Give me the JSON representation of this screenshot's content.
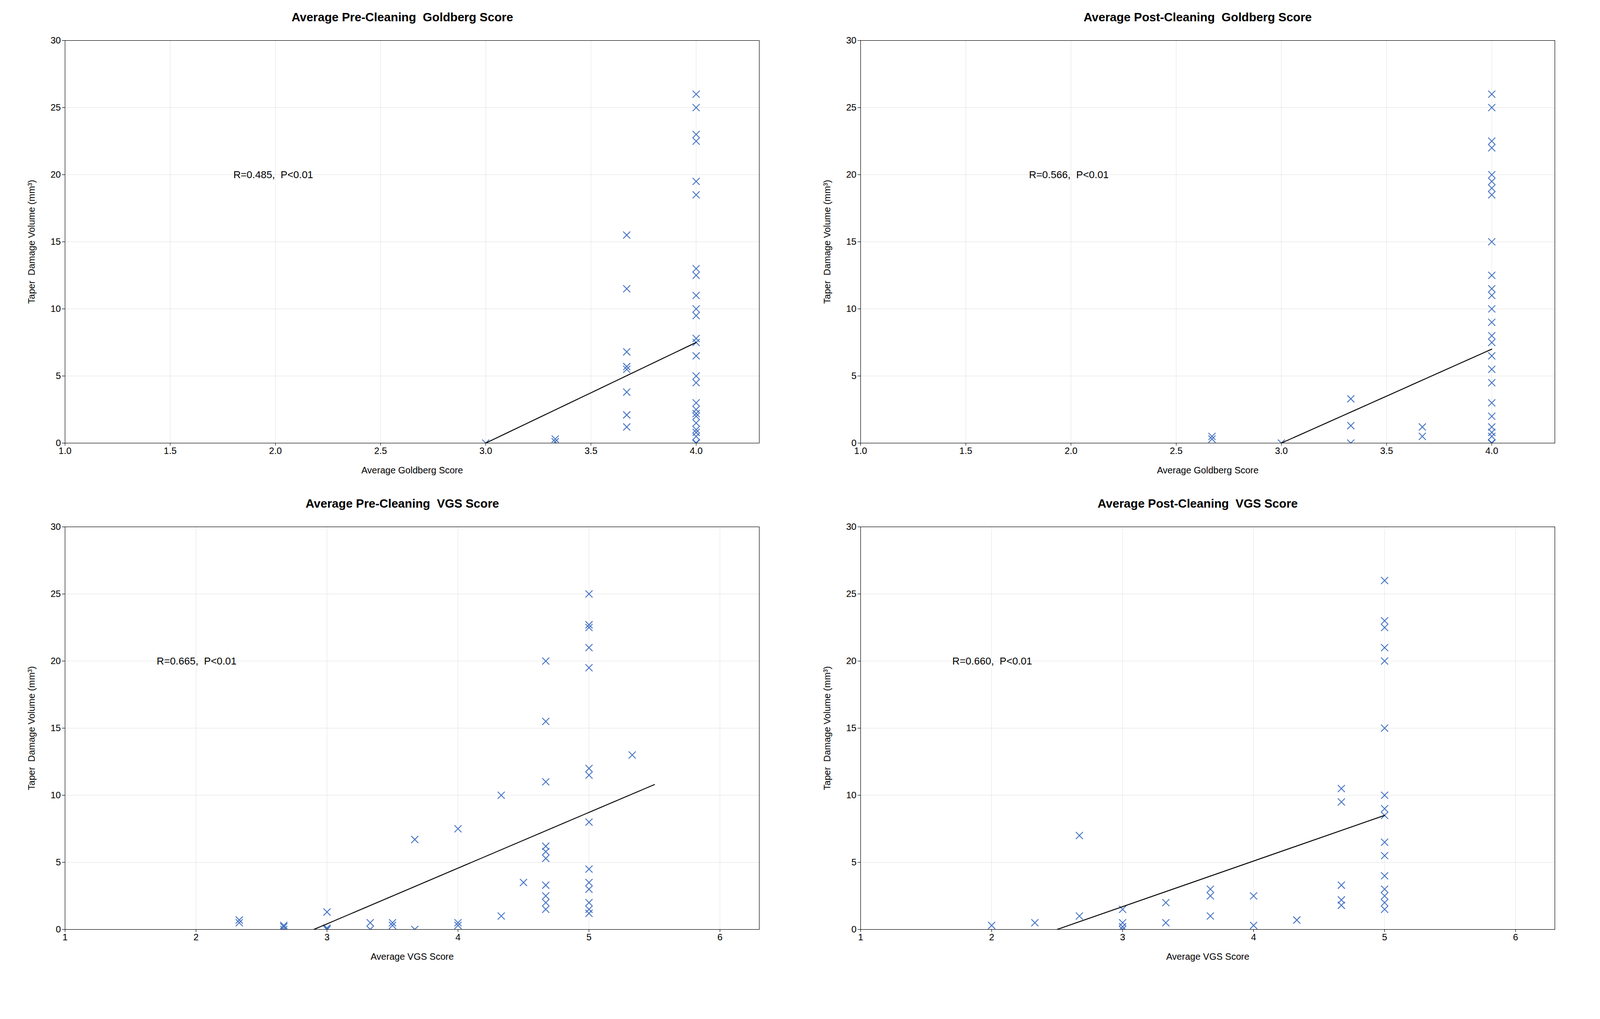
{
  "chart_data": [
    {
      "type": "scatter",
      "title": "Average Pre-Cleaning  Goldberg Score",
      "xlabel": "Average Goldberg Score",
      "ylabel": "Taper  Damage Volume (mm³)",
      "annotations": [
        {
          "text": "R=0.485,  P<0.01",
          "x": 1.8,
          "y": 20.0
        }
      ],
      "xlim": [
        1,
        4.3
      ],
      "ylim": [
        0,
        30
      ],
      "xticks": [
        {
          "value": 1,
          "label": "1.0"
        },
        {
          "value": 1.5,
          "label": "1.5"
        },
        {
          "value": 2,
          "label": "2.0"
        },
        {
          "value": 2.5,
          "label": "2.5"
        },
        {
          "value": 3,
          "label": "3.0"
        },
        {
          "value": 3.5,
          "label": "3.5"
        },
        {
          "value": 4,
          "label": "4.0"
        }
      ],
      "yticks": [
        0,
        5,
        10,
        15,
        20,
        25,
        30
      ],
      "grid": true,
      "series": [
        {
          "type": "scatter",
          "marker": "x",
          "color": "#4472C4",
          "x": [
            3.0,
            3.33,
            3.33,
            3.67,
            3.67,
            3.67,
            3.67,
            3.67,
            3.67,
            3.67,
            3.67,
            4.0,
            4.0,
            4.0,
            4.0,
            4.0,
            4.0,
            4.0,
            4.0,
            4.0,
            4.0,
            4.0,
            4.0,
            4.0,
            4.0,
            4.0,
            4.0,
            4.0,
            4.0,
            4.0,
            4.0,
            4.0,
            4.0,
            4.0,
            4.0,
            4.0,
            4.0,
            4.0,
            4.0,
            4.0,
            4.0,
            4.0,
            4.0,
            4.0,
            4.0
          ],
          "values": [
            0.0,
            0.1,
            0.3,
            3.8,
            5.5,
            5.7,
            6.8,
            11.5,
            15.5,
            1.2,
            2.1,
            0.0,
            0.0,
            0.0,
            0.0,
            0.0,
            0.0,
            0.0,
            0.0,
            0.0,
            0.0,
            0.5,
            0.8,
            1.0,
            1.5,
            2.0,
            2.2,
            2.5,
            3.0,
            4.5,
            5.0,
            6.5,
            7.5,
            7.8,
            9.5,
            10.0,
            11.0,
            12.5,
            13.0,
            18.5,
            19.5,
            22.5,
            23.0,
            25.0,
            26.0
          ]
        },
        {
          "type": "line",
          "line_style": "solid",
          "color": "black",
          "x": [
            3.0,
            4.0
          ],
          "values": [
            0.0,
            7.5
          ]
        }
      ]
    },
    {
      "type": "scatter",
      "title": "Average Post-Cleaning  Goldberg Score",
      "xlabel": "Average Goldberg Score",
      "ylabel": "Taper  Damage Volume (mm³)",
      "annotations": [
        {
          "text": "R=0.566,  P<0.01",
          "x": 1.8,
          "y": 20.0
        }
      ],
      "xlim": [
        1,
        4.3
      ],
      "ylim": [
        0,
        30
      ],
      "xticks": [
        {
          "value": 1,
          "label": "1.0"
        },
        {
          "value": 1.5,
          "label": "1.5"
        },
        {
          "value": 2,
          "label": "2.0"
        },
        {
          "value": 2.5,
          "label": "2.5"
        },
        {
          "value": 3,
          "label": "3.0"
        },
        {
          "value": 3.5,
          "label": "3.5"
        },
        {
          "value": 4,
          "label": "4.0"
        }
      ],
      "yticks": [
        0,
        5,
        10,
        15,
        20,
        25,
        30
      ],
      "grid": true,
      "series": [
        {
          "type": "scatter",
          "marker": "x",
          "color": "#4472C4",
          "x": [
            2.67,
            2.67,
            3.0,
            3.33,
            3.33,
            3.33,
            3.67,
            3.67,
            4.0,
            4.0,
            4.0,
            4.0,
            4.0,
            4.0,
            4.0,
            4.0,
            4.0,
            4.0,
            4.0,
            4.0,
            4.0,
            4.0,
            4.0,
            4.0,
            4.0,
            4.0,
            4.0,
            4.0,
            4.0,
            4.0,
            4.0,
            4.0,
            4.0,
            4.0,
            4.0,
            4.0,
            4.0,
            4.0,
            4.0,
            4.0,
            4.0,
            4.0
          ],
          "values": [
            0.3,
            0.5,
            0.0,
            0.0,
            1.3,
            3.3,
            0.5,
            1.2,
            0.0,
            0.0,
            0.0,
            0.0,
            0.0,
            0.0,
            0.0,
            0.0,
            0.0,
            0.0,
            0.5,
            0.8,
            1.2,
            2.0,
            3.0,
            4.5,
            5.5,
            6.5,
            7.5,
            8.0,
            9.0,
            10.0,
            11.0,
            11.5,
            12.5,
            15.0,
            18.5,
            19.0,
            19.5,
            20.0,
            22.0,
            22.5,
            25.0,
            26.0
          ]
        },
        {
          "type": "line",
          "line_style": "solid",
          "color": "black",
          "x": [
            3.0,
            4.0
          ],
          "values": [
            0.0,
            7.0
          ]
        }
      ]
    },
    {
      "type": "scatter",
      "title": "Average Pre-Cleaning  VGS Score",
      "xlabel": "Average VGS Score",
      "ylabel": "Taper  Damage Volume (mm³)",
      "annotations": [
        {
          "text": "R=0.665,  P<0.01",
          "x": 1.7,
          "y": 20.0
        }
      ],
      "xlim": [
        1,
        6.3
      ],
      "ylim": [
        0,
        30
      ],
      "xticks": [
        1,
        2,
        3,
        4,
        5,
        6
      ],
      "yticks": [
        0,
        5,
        10,
        15,
        20,
        25,
        30
      ],
      "grid": true,
      "series": [
        {
          "type": "scatter",
          "marker": "x",
          "color": "#4472C4",
          "x": [
            2.33,
            2.33,
            2.67,
            2.67,
            2.67,
            3.0,
            3.0,
            3.0,
            3.0,
            3.33,
            3.33,
            3.5,
            3.5,
            3.67,
            3.67,
            4.0,
            4.0,
            4.0,
            4.33,
            4.33,
            4.5,
            4.67,
            4.67,
            4.67,
            4.67,
            4.67,
            4.67,
            4.67,
            4.67,
            4.67,
            4.67,
            5.0,
            5.0,
            5.0,
            5.0,
            5.0,
            5.0,
            5.0,
            5.0,
            5.0,
            5.0,
            5.0,
            5.0,
            5.0,
            5.0,
            5.33
          ],
          "values": [
            0.5,
            0.7,
            0.0,
            0.2,
            0.3,
            0.0,
            0.0,
            0.1,
            1.3,
            0.0,
            0.5,
            0.3,
            0.5,
            0.0,
            6.7,
            0.3,
            0.5,
            7.5,
            1.0,
            10.0,
            3.5,
            1.5,
            2.0,
            2.5,
            3.3,
            5.3,
            5.8,
            6.2,
            11.0,
            15.5,
            20.0,
            1.2,
            1.5,
            2.0,
            3.0,
            3.5,
            4.5,
            8.0,
            11.5,
            12.0,
            19.5,
            21.0,
            22.5,
            22.7,
            25.0,
            13.0
          ]
        },
        {
          "type": "line",
          "line_style": "solid",
          "color": "black",
          "x": [
            2.9,
            5.5
          ],
          "values": [
            0.0,
            10.8
          ]
        }
      ]
    },
    {
      "type": "scatter",
      "title": "Average Post-Cleaning  VGS Score",
      "xlabel": "Average VGS Score",
      "ylabel": "Taper  Damage Volume (mm³)",
      "annotations": [
        {
          "text": "R=0.660,  P<0.01",
          "x": 1.7,
          "y": 20.0
        }
      ],
      "xlim": [
        1,
        6.3
      ],
      "ylim": [
        0,
        30
      ],
      "xticks": [
        1,
        2,
        3,
        4,
        5,
        6
      ],
      "yticks": [
        0,
        5,
        10,
        15,
        20,
        25,
        30
      ],
      "grid": true,
      "series": [
        {
          "type": "scatter",
          "marker": "x",
          "color": "#4472C4",
          "x": [
            2.0,
            2.33,
            2.67,
            2.67,
            3.0,
            3.0,
            3.0,
            3.0,
            3.33,
            3.33,
            3.67,
            3.67,
            3.67,
            4.0,
            4.0,
            4.33,
            4.67,
            4.67,
            4.67,
            4.67,
            4.67,
            5.0,
            5.0,
            5.0,
            5.0,
            5.0,
            5.0,
            5.0,
            5.0,
            5.0,
            5.0,
            5.0,
            5.0,
            5.0,
            5.0,
            5.0,
            5.0
          ],
          "values": [
            0.3,
            0.5,
            1.0,
            7.0,
            0.0,
            0.2,
            0.5,
            1.5,
            0.5,
            2.0,
            1.0,
            2.5,
            3.0,
            0.3,
            2.5,
            0.7,
            1.8,
            2.2,
            3.3,
            9.5,
            10.5,
            1.5,
            2.0,
            2.5,
            3.0,
            4.0,
            5.5,
            6.5,
            8.5,
            9.0,
            10.0,
            15.0,
            20.0,
            21.0,
            22.5,
            23.0,
            26.0
          ]
        },
        {
          "type": "line",
          "line_style": "solid",
          "color": "black",
          "x": [
            2.5,
            5.0
          ],
          "values": [
            0.0,
            8.5
          ]
        }
      ]
    }
  ]
}
